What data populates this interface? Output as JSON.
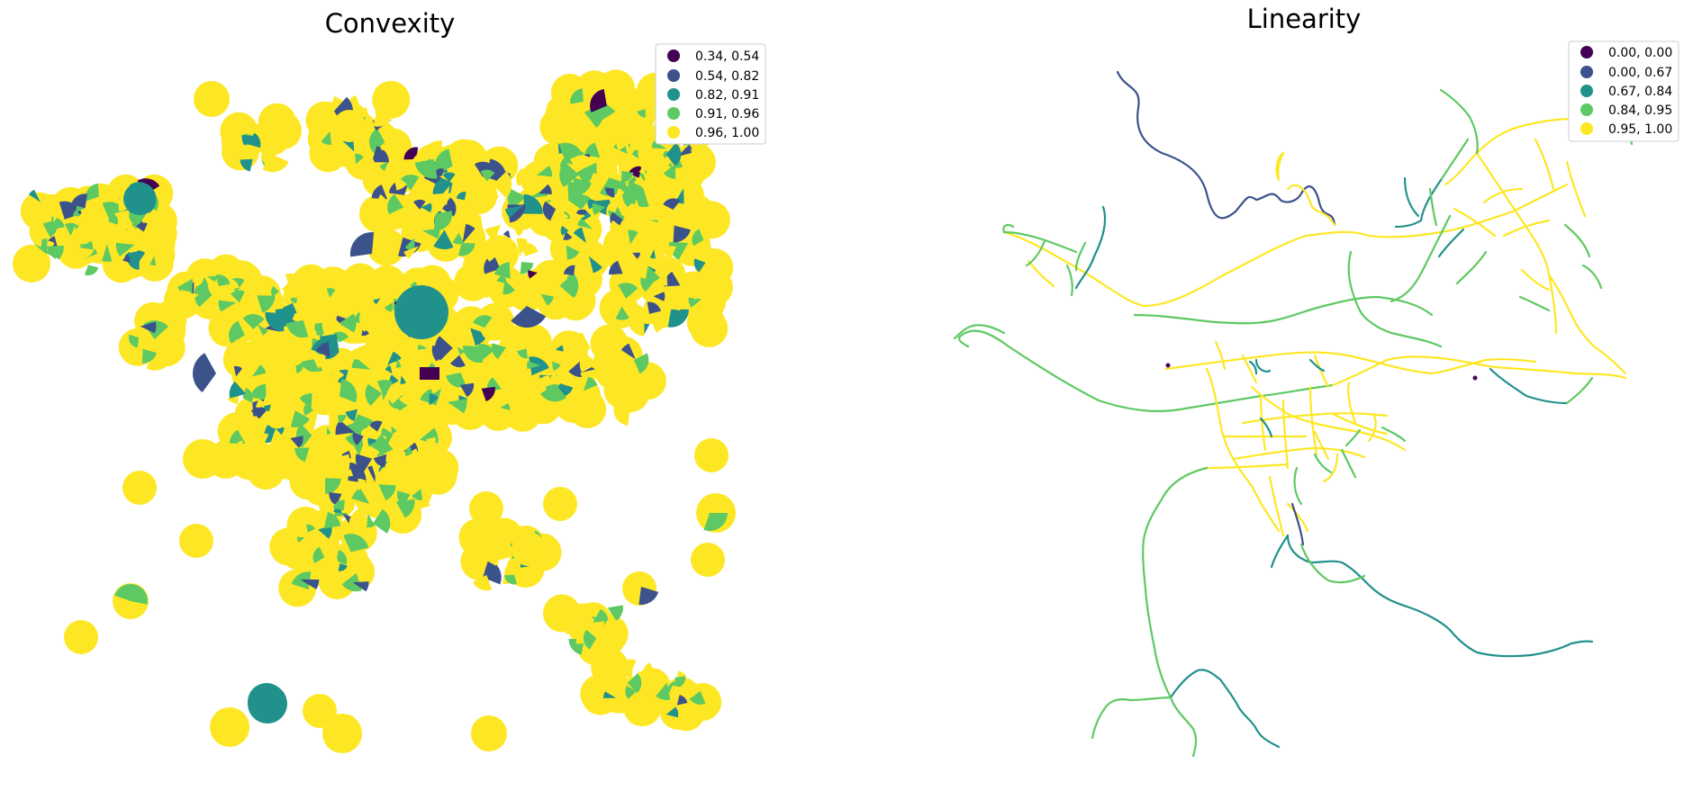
{
  "figure": {
    "panels": [
      {
        "id": "convexity",
        "title": "Convexity"
      },
      {
        "id": "linearity",
        "title": "Linearity"
      }
    ]
  },
  "colors": {
    "c1": "#440154",
    "c2": "#3b528b",
    "c3": "#21918c",
    "c4": "#5ec962",
    "c5": "#fde725"
  },
  "chart_data": [
    {
      "type": "choropleth-map",
      "title": "Convexity",
      "legend_position": "top-right",
      "legend": [
        {
          "label": "0.34, 0.54",
          "color": "#440154"
        },
        {
          "label": "0.54, 0.82",
          "color": "#3b528b"
        },
        {
          "label": "0.82, 0.91",
          "color": "#21918c"
        },
        {
          "label": "0.91, 0.96",
          "color": "#5ec962"
        },
        {
          "label": "0.96, 1.00",
          "color": "#fde725"
        }
      ]
    },
    {
      "type": "line-network-map",
      "title": "Linearity",
      "legend_position": "top-right",
      "legend": [
        {
          "label": "0.00, 0.00",
          "color": "#440154"
        },
        {
          "label": "0.00, 0.67",
          "color": "#3b528b"
        },
        {
          "label": "0.67, 0.84",
          "color": "#21918c"
        },
        {
          "label": "0.84, 0.95",
          "color": "#5ec962"
        },
        {
          "label": "0.95, 1.00",
          "color": "#fde725"
        }
      ]
    }
  ]
}
